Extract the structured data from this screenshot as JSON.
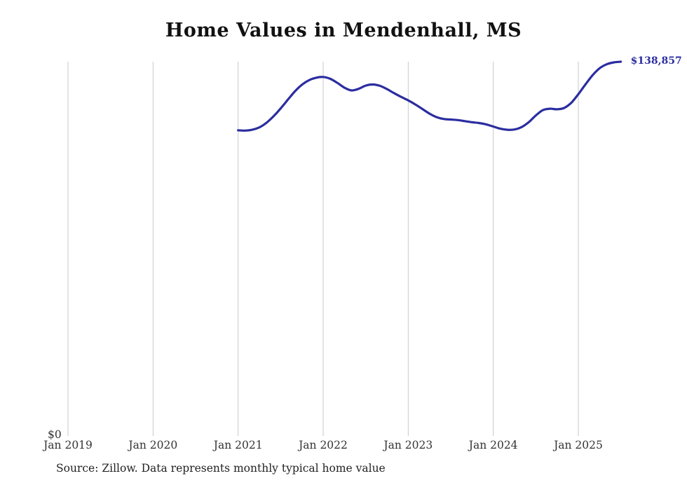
{
  "title": "Home Values in Mendenhall, MS",
  "source_note": "Source: Zillow. Data represents monthly typical home value",
  "y_zero_label": "$0",
  "colors": {
    "line": "#2b2da0",
    "end_label": "#2b2da0",
    "gridline": "#c9c9c9",
    "tick_text": "#333333"
  },
  "chart_data": {
    "type": "line",
    "title": "Home Values in Mendenhall, MS",
    "x_tick_labels": [
      "Jan 2019",
      "Jan 2020",
      "Jan 2021",
      "Jan 2022",
      "Jan 2023",
      "Jan 2024",
      "Jan 2025"
    ],
    "x_tick_month_offsets": [
      0,
      12,
      24,
      36,
      48,
      60,
      72
    ],
    "ylim": [
      0,
      145000
    ],
    "y_zero_label": "$0",
    "final_value": 138857,
    "final_value_label": "$138,857",
    "legend": "none",
    "grid": "vertical-only",
    "months": [
      "2021-01",
      "2021-02",
      "2021-03",
      "2021-04",
      "2021-05",
      "2021-06",
      "2021-07",
      "2021-08",
      "2021-09",
      "2021-10",
      "2021-11",
      "2021-12",
      "2022-01",
      "2022-02",
      "2022-03",
      "2022-04",
      "2022-05",
      "2022-06",
      "2022-07",
      "2022-08",
      "2022-09",
      "2022-10",
      "2022-11",
      "2022-12",
      "2023-01",
      "2023-02",
      "2023-03",
      "2023-04",
      "2023-05",
      "2023-06",
      "2023-07",
      "2023-08",
      "2023-09",
      "2023-10",
      "2023-11",
      "2023-12",
      "2024-01",
      "2024-02",
      "2024-03",
      "2024-04",
      "2024-05",
      "2024-06",
      "2024-07",
      "2024-08",
      "2024-09",
      "2024-10",
      "2024-11",
      "2024-12",
      "2025-01",
      "2025-02",
      "2025-03",
      "2025-04",
      "2025-05",
      "2025-06",
      "2025-07"
    ],
    "values": [
      113400,
      113300,
      113600,
      114500,
      116200,
      118600,
      121500,
      124700,
      127800,
      130300,
      132000,
      132900,
      133200,
      132500,
      131000,
      129200,
      128200,
      128800,
      130000,
      130400,
      129900,
      128700,
      127200,
      125800,
      124500,
      123000,
      121300,
      119600,
      118300,
      117600,
      117400,
      117200,
      116800,
      116400,
      116100,
      115600,
      114800,
      114000,
      113600,
      113700,
      114600,
      116400,
      118900,
      120900,
      121400,
      121200,
      121700,
      123600,
      126800,
      130400,
      133800,
      136400,
      137900,
      138600,
      138857
    ],
    "source": "Source: Zillow. Data represents monthly typical home value"
  }
}
